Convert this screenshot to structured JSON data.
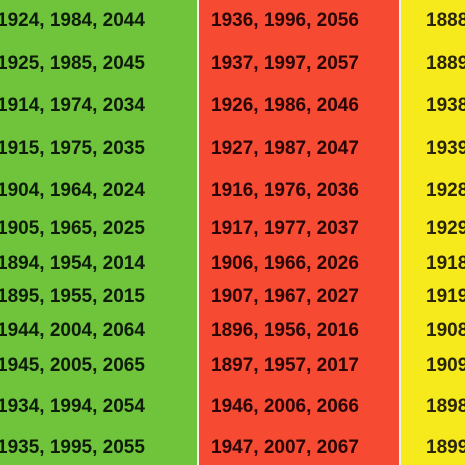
{
  "columns": [
    {
      "color": "#6fc43c",
      "rows": [
        "1924, 1984, 2044",
        "1925, 1985, 2045",
        "1914, 1974, 2034",
        "1915, 1975, 2035",
        "1904, 1964, 2024",
        "1905, 1965, 2025",
        "1894, 1954, 2014",
        "1895, 1955, 2015",
        "1944, 2004, 2064",
        "1945, 2005, 2065",
        "1934, 1994, 2054",
        "1935, 1995, 2055"
      ]
    },
    {
      "color": "#f64a33",
      "rows": [
        "1936, 1996, 2056",
        "1937, 1997, 2057",
        "1926, 1986, 2046",
        "1927, 1987, 2047",
        "1916, 1976, 2036",
        "1917, 1977, 2037",
        "1906, 1966, 2026",
        "1907, 1967, 2027",
        "1896, 1956, 2016",
        "1897, 1957, 2017",
        "1946, 2006, 2066",
        "1947, 2007, 2067"
      ]
    },
    {
      "color": "#f6ea1c",
      "rows": [
        "1888",
        "1889",
        "1938",
        "1939",
        "1928",
        "1929",
        "1918",
        "1919",
        "1908",
        "1909",
        "1898",
        "1899"
      ]
    }
  ]
}
